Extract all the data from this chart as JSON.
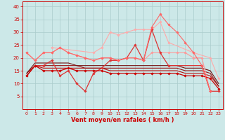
{
  "xlabel": "Vent moyen/en rafales ( km/h )",
  "bg_color": "#cce8e8",
  "grid_color": "#aacccc",
  "xlim": [
    -0.5,
    23.5
  ],
  "ylim": [
    0,
    42
  ],
  "yticks": [
    5,
    10,
    15,
    20,
    25,
    30,
    35,
    40
  ],
  "xticks": [
    0,
    1,
    2,
    3,
    4,
    5,
    6,
    7,
    8,
    9,
    10,
    11,
    12,
    13,
    14,
    15,
    16,
    17,
    18,
    19,
    20,
    21,
    22,
    23
  ],
  "lines": [
    {
      "x": [
        0,
        1,
        2,
        3,
        4,
        5,
        6,
        7,
        8,
        9,
        10,
        11,
        12,
        13,
        14,
        15,
        16,
        17,
        18,
        19,
        20,
        21,
        22
      ],
      "y": [
        22,
        19,
        22,
        22,
        24,
        22,
        21,
        20,
        19,
        20,
        20,
        19,
        20,
        20,
        19,
        22,
        22,
        22,
        22,
        22,
        20,
        20,
        7
      ],
      "color": "#ff9999",
      "marker": "D",
      "markersize": 1.8,
      "linewidth": 0.8
    },
    {
      "x": [
        3,
        8,
        9,
        10,
        11,
        12,
        13,
        14,
        15,
        16,
        17,
        20,
        22,
        23
      ],
      "y": [
        24,
        22,
        24,
        30,
        29,
        30,
        31,
        31,
        31,
        34,
        26,
        22,
        20,
        12
      ],
      "color": "#ffaaaa",
      "marker": "D",
      "markersize": 1.8,
      "linewidth": 0.8
    },
    {
      "x": [
        0,
        1,
        2,
        3,
        4,
        5,
        6,
        7,
        8,
        9,
        10,
        11,
        12,
        13,
        14,
        15,
        16,
        17,
        21,
        22,
        23
      ],
      "y": [
        13,
        17,
        17,
        19,
        13,
        15,
        10,
        7,
        14,
        16,
        19,
        19,
        20,
        25,
        19,
        31,
        22,
        17,
        17,
        7,
        7
      ],
      "color": "#dd3333",
      "marker": "D",
      "markersize": 1.8,
      "linewidth": 0.9
    },
    {
      "x": [
        0,
        1,
        2,
        3,
        4,
        5,
        6,
        7,
        8,
        9,
        10,
        11,
        12,
        13,
        14,
        15,
        16,
        17,
        18,
        19,
        20,
        21,
        22,
        23
      ],
      "y": [
        13,
        17,
        15,
        15,
        15,
        16,
        15,
        15,
        15,
        15,
        14,
        14,
        14,
        14,
        14,
        14,
        14,
        14,
        14,
        13,
        13,
        13,
        12,
        8
      ],
      "color": "#cc0000",
      "marker": "D",
      "markersize": 1.8,
      "linewidth": 0.9
    },
    {
      "x": [
        0,
        1,
        2,
        3,
        4,
        5,
        6,
        7,
        8,
        9,
        10,
        11,
        12,
        13,
        14,
        15,
        16,
        17,
        18,
        19,
        20,
        21,
        22,
        23
      ],
      "y": [
        13,
        17,
        16,
        16,
        16,
        16,
        16,
        16,
        16,
        16,
        15,
        15,
        15,
        15,
        15,
        15,
        15,
        15,
        15,
        14,
        14,
        14,
        13,
        9
      ],
      "color": "#bb1111",
      "marker": null,
      "markersize": 0,
      "linewidth": 0.8
    },
    {
      "x": [
        0,
        1,
        2,
        3,
        4,
        5,
        6,
        7,
        8,
        9,
        10,
        11,
        12,
        13,
        14,
        15,
        16,
        17,
        18,
        19,
        20,
        21,
        22,
        23
      ],
      "y": [
        14,
        17,
        17,
        17,
        17,
        17,
        17,
        16,
        16,
        16,
        16,
        16,
        16,
        16,
        16,
        16,
        16,
        16,
        16,
        15,
        15,
        15,
        14,
        9
      ],
      "color": "#991111",
      "marker": null,
      "markersize": 0,
      "linewidth": 0.8
    },
    {
      "x": [
        0,
        1,
        2,
        3,
        4,
        5,
        6,
        7,
        8,
        9,
        10,
        11,
        12,
        13,
        14,
        15,
        16,
        17,
        18,
        19,
        20,
        21,
        22,
        23
      ],
      "y": [
        14,
        18,
        18,
        18,
        18,
        18,
        17,
        17,
        17,
        17,
        17,
        17,
        17,
        17,
        17,
        17,
        17,
        17,
        17,
        16,
        16,
        16,
        15,
        10
      ],
      "color": "#771111",
      "marker": null,
      "markersize": 0,
      "linewidth": 0.8
    },
    {
      "x": [
        0,
        1,
        2,
        3,
        4,
        5,
        6,
        7,
        8,
        9,
        10,
        11,
        12,
        13,
        14,
        15,
        16,
        17,
        18,
        19,
        20,
        21,
        22
      ],
      "y": [
        22,
        19,
        22,
        22,
        24,
        22,
        21,
        20,
        19,
        20,
        20,
        19,
        20,
        20,
        19,
        32,
        37,
        33,
        30,
        26,
        22,
        17,
        7
      ],
      "color": "#ff6666",
      "marker": "D",
      "markersize": 1.8,
      "linewidth": 0.8
    }
  ]
}
